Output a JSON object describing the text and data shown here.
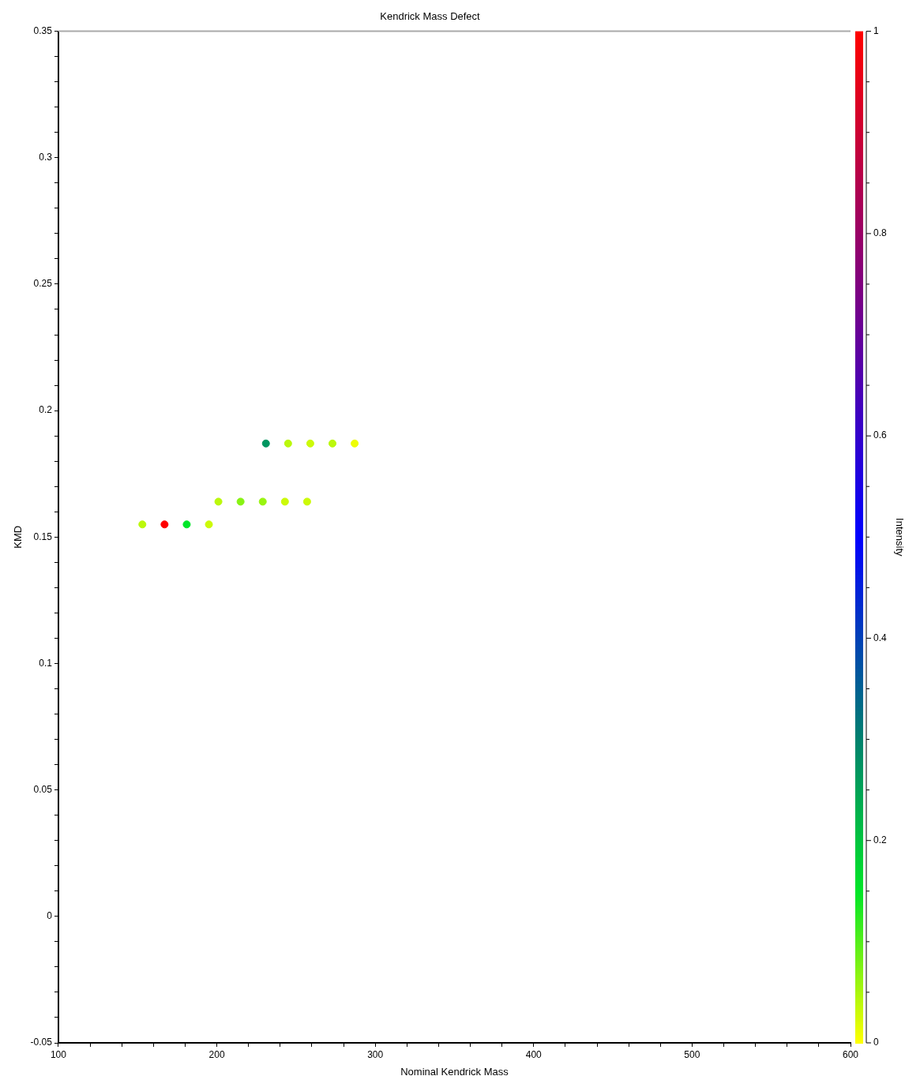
{
  "chart_data": {
    "type": "scatter",
    "title": "Kendrick Mass Defect",
    "xlabel": "Nominal Kendrick Mass",
    "ylabel": "KMD",
    "clabel": "Intensity",
    "x": [
      153,
      167,
      181,
      195,
      201,
      215,
      229,
      243,
      257,
      231,
      245,
      259,
      273,
      287
    ],
    "values": [
      0.155,
      0.155,
      0.155,
      0.155,
      0.164,
      0.164,
      0.164,
      0.164,
      0.164,
      0.187,
      0.187,
      0.187,
      0.187,
      0.187
    ],
    "cvalues": [
      0.04,
      1,
      0.15,
      0.03,
      0.04,
      0.07,
      0.06,
      0.03,
      0.03,
      0.27,
      0.04,
      0.03,
      0.04,
      0.01
    ],
    "marker": "circle",
    "grid": false,
    "legend": false,
    "xlim": [
      100,
      600
    ],
    "xticks": [
      100,
      {
        "value": 120,
        "label": null
      },
      {
        "value": 140,
        "label": null
      },
      {
        "value": 160,
        "label": null
      },
      {
        "value": 180,
        "label": null
      },
      200,
      {
        "value": 220,
        "label": null
      },
      {
        "value": 240,
        "label": null
      },
      {
        "value": 260,
        "label": null
      },
      {
        "value": 280,
        "label": null
      },
      300,
      {
        "value": 320,
        "label": null
      },
      {
        "value": 340,
        "label": null
      },
      {
        "value": 360,
        "label": null
      },
      {
        "value": 380,
        "label": null
      },
      400,
      {
        "value": 420,
        "label": null
      },
      {
        "value": 440,
        "label": null
      },
      {
        "value": 460,
        "label": null
      },
      {
        "value": 480,
        "label": null
      },
      500,
      {
        "value": 520,
        "label": null
      },
      {
        "value": 540,
        "label": null
      },
      {
        "value": 560,
        "label": null
      },
      {
        "value": 580,
        "label": null
      },
      600
    ],
    "ylim": [
      -0.05,
      0.35
    ],
    "yticks": [
      -0.05,
      {
        "value": -0.04,
        "label": null
      },
      {
        "value": -0.03,
        "label": null
      },
      {
        "value": -0.02,
        "label": null
      },
      {
        "value": -0.01,
        "label": null
      },
      0,
      {
        "value": 0.01,
        "label": null
      },
      {
        "value": 0.02,
        "label": null
      },
      {
        "value": 0.03,
        "label": null
      },
      {
        "value": 0.04,
        "label": null
      },
      0.05,
      {
        "value": 0.06,
        "label": null
      },
      {
        "value": 0.07,
        "label": null
      },
      {
        "value": 0.08,
        "label": null
      },
      {
        "value": 0.09,
        "label": null
      },
      0.1,
      {
        "value": 0.11,
        "label": null
      },
      {
        "value": 0.12,
        "label": null
      },
      {
        "value": 0.13,
        "label": null
      },
      {
        "value": 0.14,
        "label": null
      },
      0.15,
      {
        "value": 0.16,
        "label": null
      },
      {
        "value": 0.17,
        "label": null
      },
      {
        "value": 0.18,
        "label": null
      },
      {
        "value": 0.19,
        "label": null
      },
      0.2,
      {
        "value": 0.21,
        "label": null
      },
      {
        "value": 0.22,
        "label": null
      },
      {
        "value": 0.23,
        "label": null
      },
      {
        "value": 0.24,
        "label": null
      },
      0.25,
      {
        "value": 0.26,
        "label": null
      },
      {
        "value": 0.27,
        "label": null
      },
      {
        "value": 0.28,
        "label": null
      },
      {
        "value": 0.29,
        "label": null
      },
      0.3,
      {
        "value": 0.31,
        "label": null
      },
      {
        "value": 0.32,
        "label": null
      },
      {
        "value": 0.33,
        "label": null
      },
      {
        "value": 0.34,
        "label": null
      },
      0.35
    ],
    "clim": [
      0,
      1
    ],
    "cticks": [
      0,
      {
        "value": 0.05,
        "label": null
      },
      {
        "value": 0.1,
        "label": null
      },
      {
        "value": 0.15,
        "label": null
      },
      0.2,
      {
        "value": 0.25,
        "label": null
      },
      {
        "value": 0.3,
        "label": null
      },
      {
        "value": 0.35,
        "label": null
      },
      0.4,
      {
        "value": 0.45,
        "label": null
      },
      {
        "value": 0.5,
        "label": null
      },
      {
        "value": 0.55,
        "label": null
      },
      0.6,
      {
        "value": 0.65,
        "label": null
      },
      {
        "value": 0.7,
        "label": null
      },
      {
        "value": 0.75,
        "label": null
      },
      0.8,
      {
        "value": 0.85,
        "label": null
      },
      {
        "value": 0.9,
        "label": null
      },
      {
        "value": 0.95,
        "label": null
      },
      1
    ]
  }
}
